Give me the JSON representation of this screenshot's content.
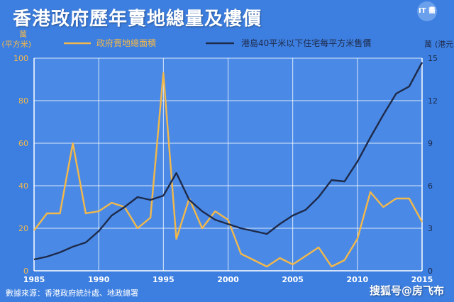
{
  "title": "香港政府歷年賣地總量及樓價",
  "logo_text": "IT 畵",
  "source": "數據來源：香港政府統計處、地政總署",
  "watermark": "搜狐号@房飞布",
  "colors": {
    "background": "#3d7fe0",
    "plot_bg": "#4a8ae6",
    "land_series": "#f2b84b",
    "price_series": "#1e2a4a",
    "grid": "#ffffff",
    "left_axis_text": "#f2b84b",
    "right_axis_text": "#1e2a4a"
  },
  "chart_data": {
    "type": "line",
    "title": "香港政府歷年賣地總量及樓價",
    "xlabel": "",
    "xlim": [
      1985,
      2015
    ],
    "x_ticks": [
      1985,
      1990,
      1995,
      2000,
      2005,
      2010,
      2015
    ],
    "left_axis": {
      "unit_line1": "萬",
      "unit_line2": "(平方米)",
      "lim": [
        0,
        100
      ],
      "ticks": [
        0,
        20,
        40,
        60,
        80,
        100
      ]
    },
    "right_axis": {
      "unit_line1": "萬",
      "unit_line2": "(港元)",
      "lim": [
        0,
        15
      ],
      "ticks": [
        0,
        3,
        6,
        9,
        12,
        15
      ]
    },
    "series": [
      {
        "name": "政府賣地總面積",
        "axis": "left",
        "x": [
          1985,
          1986,
          1987,
          1988,
          1989,
          1990,
          1991,
          1992,
          1993,
          1994,
          1995,
          1996,
          1997,
          1998,
          1999,
          2000,
          2001,
          2002,
          2003,
          2004,
          2005,
          2006,
          2007,
          2008,
          2009,
          2010,
          2011,
          2012,
          2013,
          2014,
          2015
        ],
        "values": [
          19,
          27,
          27,
          60,
          27,
          28,
          32,
          30,
          20,
          25,
          93,
          15,
          34,
          20,
          28,
          24,
          8,
          5,
          2,
          6,
          3,
          7,
          11,
          2,
          5,
          15,
          37,
          30,
          34,
          34,
          23
        ]
      },
      {
        "name": "港島40平米以下住宅每平方米售價",
        "axis": "right",
        "x": [
          1985,
          1986,
          1987,
          1988,
          1989,
          1990,
          1991,
          1992,
          1993,
          1994,
          1995,
          1996,
          1997,
          1998,
          1999,
          2000,
          2001,
          2002,
          2003,
          2004,
          2005,
          2006,
          2007,
          2008,
          2009,
          2010,
          2011,
          2012,
          2013,
          2014,
          2015
        ],
        "values": [
          0.8,
          1.0,
          1.3,
          1.7,
          2.0,
          2.8,
          3.9,
          4.5,
          5.2,
          5.0,
          5.3,
          6.9,
          5.0,
          4.2,
          3.6,
          3.3,
          3.0,
          2.8,
          2.6,
          3.3,
          3.9,
          4.3,
          5.2,
          6.4,
          6.3,
          7.7,
          9.4,
          11.0,
          12.5,
          13.0,
          14.7
        ]
      }
    ],
    "legend_placement": "top",
    "grid": true
  }
}
